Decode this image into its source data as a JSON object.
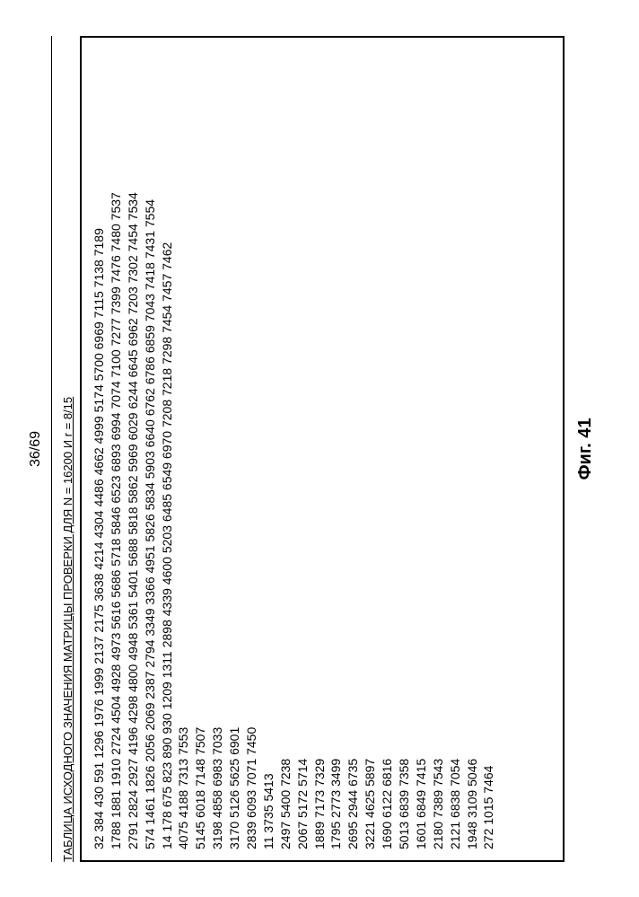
{
  "page_number": "36/69",
  "table_title": "ТАБЛИЦА ИСХОДНОГО ЗНАЧЕНИЯ МАТРИЦЫ ПРОВЕРКИ ДЛЯ N = 16200 И r = 8/15",
  "figure_label": "Фиг. 41",
  "rows": [
    "32 384 430 591 1296 1976 1999 2137 2175 3638 4214 4304 4486 4662 4999 5174 5700 6969 7115 7138 7189",
    "1788 1881 1910 2724 4504 4928 4973 5616 5686 5718 5846 6523 6893 6994 7074 7100 7277 7399 7476 7480 7537",
    "2791 2824 2927 4196 4298 4800 4948 5361 5401 5688 5818 5862 5969 6029 6244 6645 6962 7203 7302 7454 7534",
    "574 1461 1826 2056 2069 2387 2794 3349 3366 4951 5826 5834 5903 6640 6762 6786 6859 7043 7418 7431 7554",
    "14 178 675 823 890 930 1209 1311 2898 4339 4600 5203 6485 6549 6970 7208 7218 7298 7454 7457 7462",
    "4075 4188 7313 7553",
    "5145 6018 7148 7507",
    "3198 4858 6983 7033",
    "3170 5126 5625 6901",
    "2839 6093 7071 7450",
    "11 3735 5413",
    "2497 5400 7238",
    "2067 5172 5714",
    "1889 7173 7329",
    "1795 2773 3499",
    "2695 2944 6735",
    "3221 4625 5897",
    "1690 6122 6816",
    "5013 6839 7358",
    "1601 6849 7415",
    "2180 7389 7543",
    "2121 6838 7054",
    "1948 3109 5046",
    "272 1015 7464"
  ]
}
